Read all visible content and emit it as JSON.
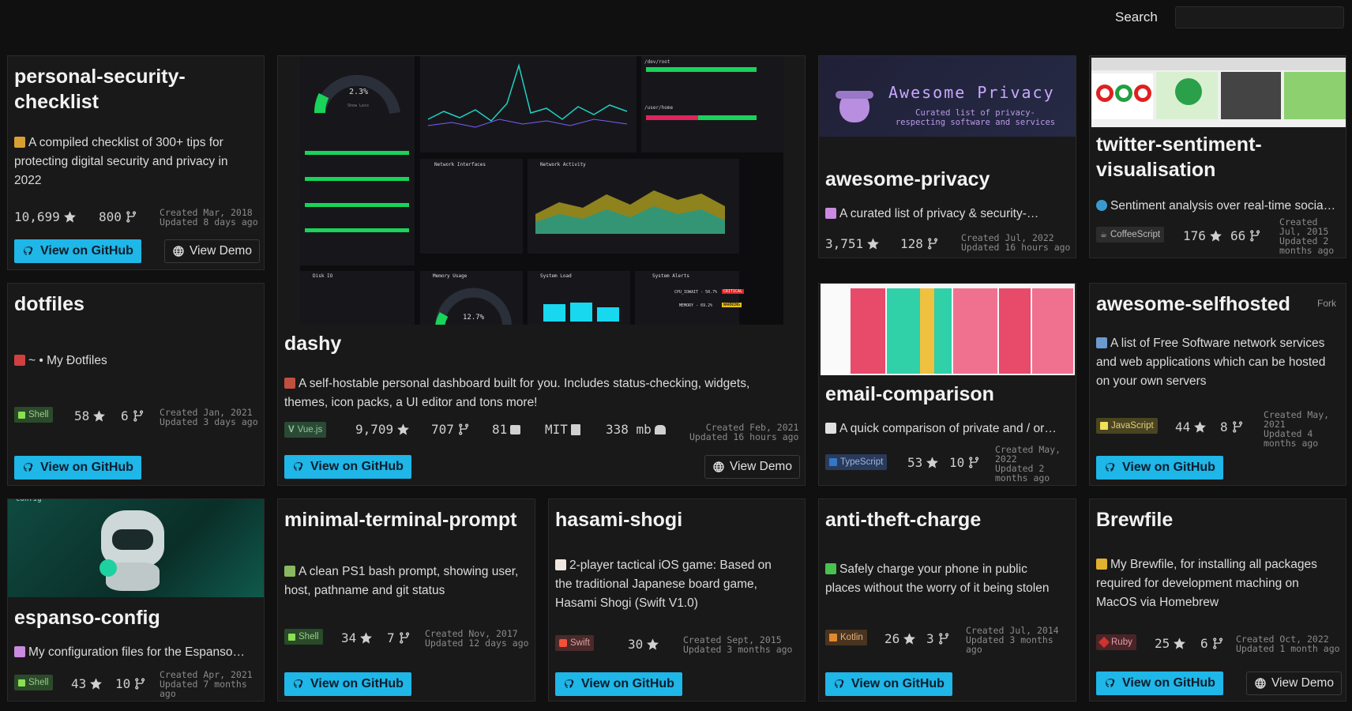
{
  "header": {
    "search_label": "Search",
    "search_value": ""
  },
  "cards": {
    "psc": {
      "title_l1": "personal-security-",
      "title_l2": "checklist",
      "desc_l1": "A compiled checklist of 300+ tips for",
      "desc_l2": "protecting digital security and privacy in",
      "desc_l3": "2022",
      "stars": "10,699",
      "forks": "800",
      "created": "Created Mar, 2018",
      "updated": "Updated 8 days ago",
      "github": "View on GitHub",
      "demo": "View Demo"
    },
    "dashy": {
      "title": "dashy",
      "desc_l1": "A self-hostable personal dashboard built for you. Includes status-checking, widgets,",
      "desc_l2": "themes, icon packs, a UI editor and tons more!",
      "lang": "Vue.js",
      "stars": "9,709",
      "forks": "707",
      "issues": "81",
      "license": "MIT",
      "size": "338 mb",
      "created": "Created Feb, 2021",
      "updated": "Updated 16 hours ago",
      "github": "View on GitHub",
      "demo": "View Demo",
      "shot": {
        "cpu": "2.3%",
        "cpu_caption": "Show Less",
        "mem": "12.7%",
        "net_if": "Network Interfaces",
        "net_act": "Network Activity",
        "disk": "Disk IO",
        "memory": "Memory Usage",
        "load": "System Load",
        "alerts": "System Alerts",
        "cpu_alert": "CPU_IOWAIT - 50.7%",
        "critical": "CRITICAL",
        "mem_alert": "MEMORY - 69.2%",
        "warning": "WARNING",
        "dev_root": "/dev/root",
        "user_home": "/user/home"
      }
    },
    "awesome_privacy": {
      "title": "awesome-privacy",
      "banner_title": "Awesome Privacy",
      "banner_sub_l1": "Curated list of privacy-",
      "banner_sub_l2": "respecting software and services",
      "desc": "A curated list of privacy & security-…",
      "stars": "3,751",
      "forks": "128",
      "created": "Created Jul, 2022",
      "updated": "Updated 16 hours ago"
    },
    "twitter": {
      "title_l1": "twitter-sentiment-",
      "title_l2": "visualisation",
      "desc": "Sentiment analysis over real-time socia…",
      "lang": "CoffeeScript",
      "stars": "176",
      "forks": "66",
      "created_l1": "Created",
      "created_l2": "Jul, 2015",
      "updated_l1": "Updated 2",
      "updated_l2": "months ago"
    },
    "dotfiles": {
      "title": "dotfiles",
      "desc": "~ • My Ðotfiles",
      "lang": "Shell",
      "stars": "58",
      "forks": "6",
      "created": "Created Jan, 2021",
      "updated": "Updated 3 days ago",
      "github": "View on GitHub"
    },
    "email": {
      "title": "email-comparison",
      "desc": "A quick comparison of private and / or…",
      "lang": "TypeScript",
      "stars": "53",
      "forks": "10",
      "created_l1": "Created May,",
      "created_l2": "2022",
      "updated_l1": "Updated 2",
      "updated_l2": "months ago"
    },
    "selfhosted": {
      "title": "awesome-selfhosted",
      "fork": "Fork",
      "desc_l1": "A list of Free Software network services",
      "desc_l2": "and web applications which can be hosted",
      "desc_l3": "on your own servers",
      "lang": "JavaScript",
      "stars": "44",
      "forks": "8",
      "created_l1": "Created May,",
      "created_l2": "2021",
      "updated_l1": "Updated 4",
      "updated_l2": "months ago",
      "github": "View on GitHub"
    },
    "espanso": {
      "title": "espanso-config",
      "banner": "config",
      "desc": "My configuration files for the Espanso…",
      "lang": "Shell",
      "stars": "43",
      "forks": "10",
      "created": "Created Apr, 2021",
      "updated_l1": "Updated 7 months",
      "updated_l2": "ago"
    },
    "mtp": {
      "title": "minimal-terminal-prompt",
      "desc_l1": "A clean PS1 bash prompt, showing user,",
      "desc_l2": "host, pathname and git status",
      "lang": "Shell",
      "stars": "34",
      "forks": "7",
      "created": "Created Nov, 2017",
      "updated": "Updated 12 days ago",
      "github": "View on GitHub"
    },
    "hasami": {
      "title": "hasami-shogi",
      "desc_l1": "2-player tactical iOS game: Based on",
      "desc_l2": "the traditional Japanese board game,",
      "desc_l3": "Hasami Shogi (Swift V1.0)",
      "lang": "Swift",
      "stars": "30",
      "created": "Created Sept, 2015",
      "updated": "Updated 3 months ago",
      "github": "View on GitHub"
    },
    "antitheft": {
      "title": "anti-theft-charge",
      "desc_l1": "Safely charge your phone in public",
      "desc_l2": "places without the worry of it being stolen",
      "lang": "Kotlin",
      "stars": "26",
      "forks": "3",
      "created": "Created Jul, 2014",
      "updated_l1": "Updated 3 months",
      "updated_l2": "ago",
      "github": "View on GitHub"
    },
    "brewfile": {
      "title": "Brewfile",
      "desc_l1": "My Brewfile, for installing all packages",
      "desc_l2": "required for development maching on",
      "desc_l3": "MacOS via Homebrew",
      "lang": "Ruby",
      "stars": "25",
      "forks": "6",
      "created": "Created Oct, 2022",
      "updated": "Updated 1 month ago",
      "github": "View on GitHub",
      "demo": "View Demo"
    }
  },
  "colors": {
    "accent": "#1fb6e8",
    "bg": "#101010",
    "card": "#191919"
  },
  "icons": [
    "star-icon",
    "fork-icon",
    "github-icon",
    "globe-icon",
    "issue-icon",
    "license-icon",
    "size-icon"
  ]
}
